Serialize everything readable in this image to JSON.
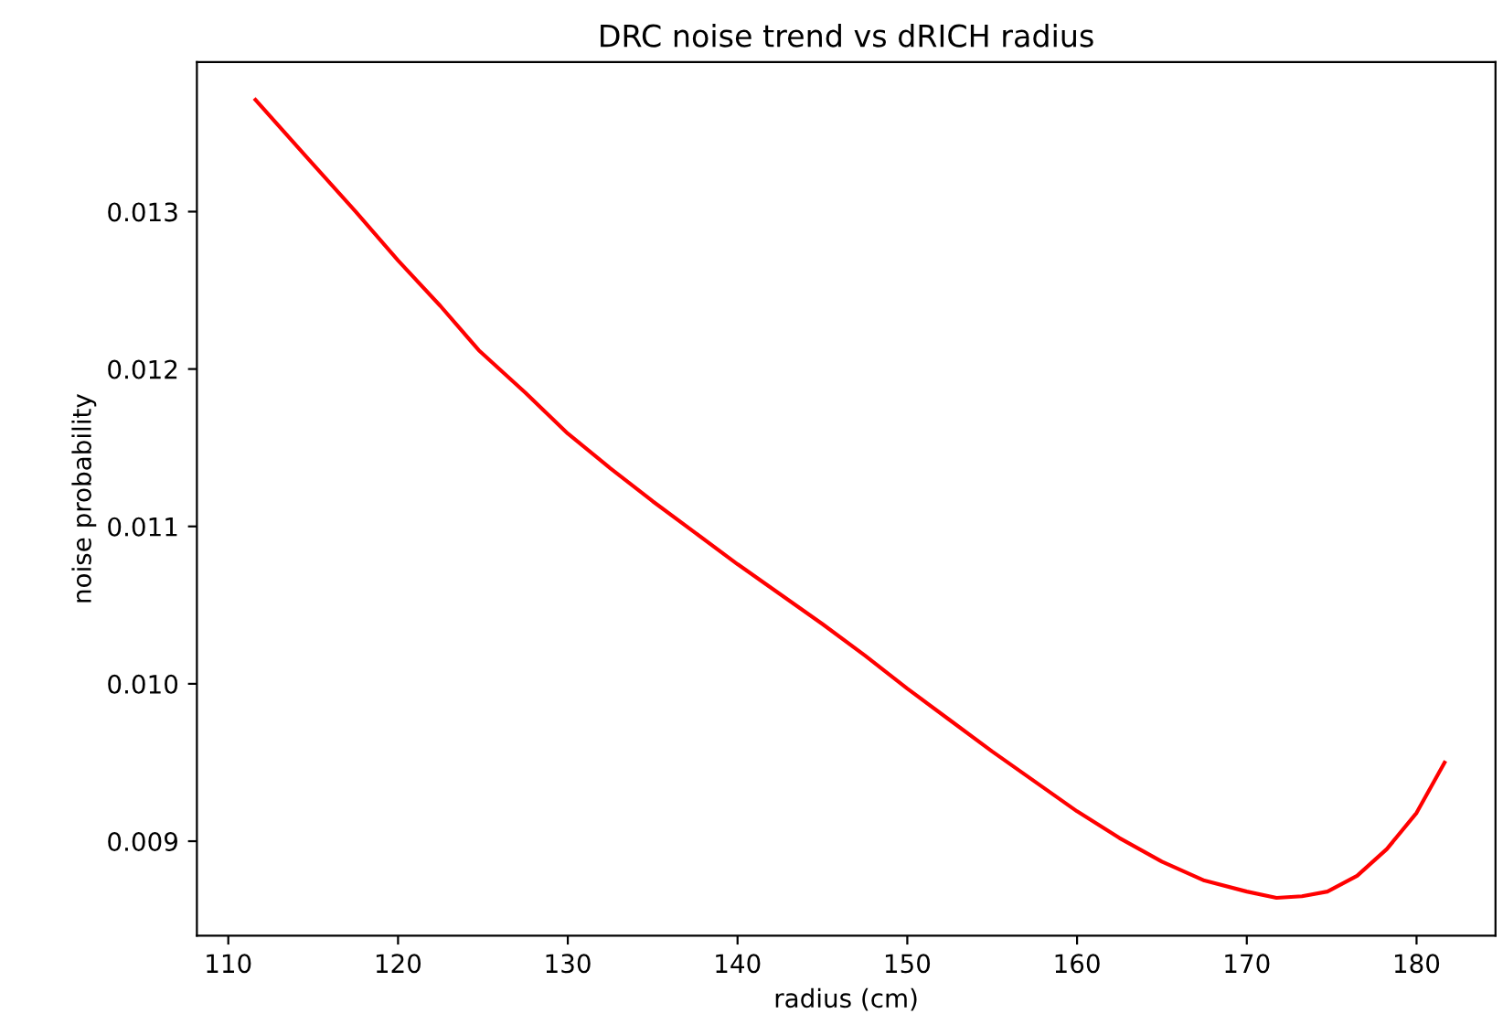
{
  "chart_data": {
    "type": "line",
    "title": "DRC noise trend vs dRICH radius",
    "xlabel": "radius (cm)",
    "ylabel": "noise probability",
    "x": [
      111.6,
      114.75,
      117.5,
      120,
      122.5,
      124.75,
      127.5,
      130,
      132.5,
      135,
      137.5,
      140,
      142.5,
      145,
      147.5,
      150,
      152.5,
      155,
      157.5,
      160,
      162.5,
      165,
      167.5,
      170,
      171.75,
      173.25,
      174.75,
      176.5,
      178.25,
      180,
      181.65
    ],
    "series": [
      {
        "color": "#ff0000",
        "values": [
          0.01371,
          0.01333,
          0.013,
          0.01269,
          0.0124,
          0.01212,
          0.01185,
          0.01159,
          0.01137,
          0.01116,
          0.01096,
          0.01076,
          0.01057,
          0.01038,
          0.01018,
          0.00997,
          0.00977,
          0.00957,
          0.00938,
          0.00919,
          0.00902,
          0.00887,
          0.00875,
          0.00868,
          0.00864,
          0.00865,
          0.00868,
          0.00878,
          0.00895,
          0.00918,
          0.0095
        ]
      }
    ],
    "xlim": [
      108.15,
      184.65
    ],
    "ylim": [
      0.0084,
      0.01395
    ],
    "xticks": [
      110,
      120,
      130,
      140,
      150,
      160,
      170,
      180
    ],
    "yticks": [
      {
        "value": 0.009,
        "label": "0.009"
      },
      {
        "value": 0.01,
        "label": "0.010"
      },
      {
        "value": 0.011,
        "label": "0.011"
      },
      {
        "value": 0.012,
        "label": "0.012"
      },
      {
        "value": 0.013,
        "label": "0.013"
      }
    ],
    "grid": false,
    "marker": "none",
    "line_style": "solid"
  }
}
